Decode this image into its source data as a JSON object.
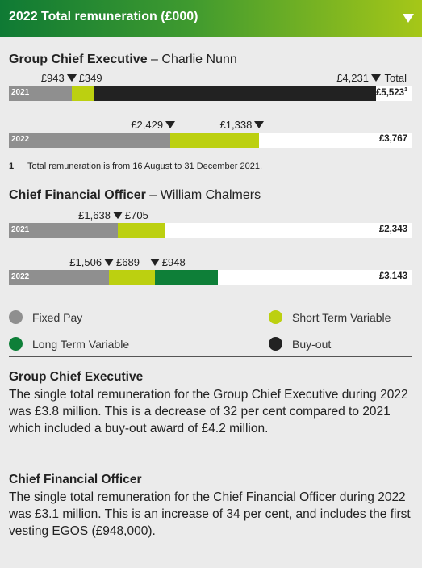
{
  "header": {
    "title": "2022 Total remuneration (£000)"
  },
  "total_heading": "Total",
  "colors": {
    "fixed_pay": "#8f8f8f",
    "short_term_variable": "#bcd010",
    "long_term_variable": "#0e7f38",
    "buy_out": "#222222"
  },
  "chart_data": [
    {
      "type": "bar",
      "title": "Group Chief Executive",
      "person": "– Charlie Nunn",
      "categories": [
        "2021",
        "2022"
      ],
      "series": [
        {
          "name": "Fixed Pay",
          "values": [
            943,
            2429
          ]
        },
        {
          "name": "Short Term Variable",
          "values": [
            349,
            1338
          ]
        },
        {
          "name": "Long Term Variable",
          "values": [
            0,
            0
          ]
        },
        {
          "name": "Buy-out",
          "values": [
            4231,
            0
          ]
        }
      ],
      "labels": [
        [
          "£943",
          "£349",
          "£4,231"
        ],
        [
          "£2,429",
          "£1,338"
        ]
      ],
      "totals": [
        "£5,523",
        "£3,767"
      ],
      "total_marks": [
        "1",
        ""
      ],
      "xlim": [
        0,
        6070
      ]
    },
    {
      "type": "bar",
      "title": "Chief Financial Officer",
      "person": "– William Chalmers",
      "categories": [
        "2021",
        "2022"
      ],
      "series": [
        {
          "name": "Fixed Pay",
          "values": [
            1638,
            1506
          ]
        },
        {
          "name": "Short Term Variable",
          "values": [
            705,
            689
          ]
        },
        {
          "name": "Long Term Variable",
          "values": [
            0,
            948
          ]
        },
        {
          "name": "Buy-out",
          "values": [
            0,
            0
          ]
        }
      ],
      "labels": [
        [
          "£1,638",
          "£705"
        ],
        [
          "£1,506",
          "£689",
          "£948"
        ]
      ],
      "totals": [
        "£2,343",
        "£3,143"
      ],
      "total_marks": [
        "",
        ""
      ],
      "xlim": [
        0,
        6070
      ]
    }
  ],
  "footnote": {
    "number": "1",
    "text": "Total remuneration is from 16 August to 31 December 2021."
  },
  "legend": [
    {
      "label": "Fixed Pay",
      "color": "#8f8f8f"
    },
    {
      "label": "Short Term Variable",
      "color": "#bcd010"
    },
    {
      "label": "Long Term Variable",
      "color": "#0e7f38"
    },
    {
      "label": "Buy-out",
      "color": "#222222"
    }
  ],
  "summaries": [
    {
      "heading": "Group Chief Executive",
      "text": "The single total remuneration for the Group Chief Executive during 2022 was £3.8 million. This is a decrease of 32 per cent compared to 2021 which included a buy-out award of £4.2 million."
    },
    {
      "heading": "Chief Financial Officer",
      "text": "The single total remuneration for the Chief Financial Officer during 2022 was £3.1 million. This is an increase of 34 per cent, and includes the first vesting EGOS (£948,000)."
    }
  ]
}
